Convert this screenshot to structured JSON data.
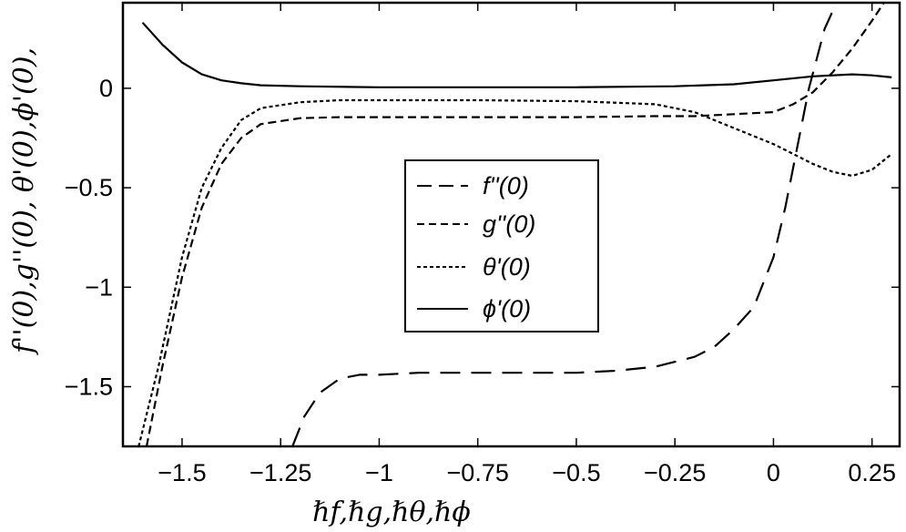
{
  "chart_data": {
    "type": "line",
    "title": "",
    "xlabel": "ℏf,ℏg,ℏθ,ℏϕ",
    "ylabel": "f''(0),g''(0), θ'(0),ϕ'(0),",
    "xlim": [
      -1.65,
      0.32
    ],
    "ylim": [
      -1.8,
      0.43
    ],
    "xticks": [
      -1.5,
      -1.25,
      -1,
      -0.75,
      -0.5,
      -0.25,
      0,
      0.25
    ],
    "xtick_labels": [
      "−1.5",
      "−1.25",
      "−1",
      "−0.75",
      "−0.5",
      "−0.25",
      "0",
      "0.25"
    ],
    "yticks": [
      0,
      -0.5,
      -1,
      -1.5
    ],
    "ytick_labels": [
      "0",
      "−0.5",
      "−1",
      "−1.5"
    ],
    "grid": false,
    "legend": "center-right",
    "series": [
      {
        "name": "f''(0)",
        "dash": "long",
        "x": [
          -1.22,
          -1.19,
          -1.15,
          -1.1,
          -1.05,
          -1.0,
          -0.9,
          -0.75,
          -0.6,
          -0.5,
          -0.4,
          -0.3,
          -0.2,
          -0.15,
          -0.1,
          -0.05,
          0.0,
          0.03,
          0.06,
          0.09,
          0.11,
          0.13,
          0.16
        ],
        "y": [
          -1.8,
          -1.65,
          -1.53,
          -1.46,
          -1.44,
          -1.44,
          -1.43,
          -1.43,
          -1.43,
          -1.43,
          -1.42,
          -1.4,
          -1.35,
          -1.3,
          -1.21,
          -1.1,
          -0.85,
          -0.6,
          -0.3,
          0.0,
          0.15,
          0.3,
          0.43
        ]
      },
      {
        "name": "g''(0)",
        "dash": "medium",
        "x": [
          -1.59,
          -1.55,
          -1.5,
          -1.45,
          -1.4,
          -1.35,
          -1.3,
          -1.2,
          -1.1,
          -1.0,
          -0.75,
          -0.5,
          -0.3,
          -0.2,
          -0.1,
          0.0,
          0.05,
          0.1,
          0.15,
          0.2,
          0.25,
          0.28
        ],
        "y": [
          -1.8,
          -1.4,
          -0.95,
          -0.6,
          -0.38,
          -0.25,
          -0.18,
          -0.15,
          -0.145,
          -0.145,
          -0.145,
          -0.145,
          -0.14,
          -0.14,
          -0.13,
          -0.12,
          -0.08,
          -0.02,
          0.08,
          0.2,
          0.34,
          0.43
        ]
      },
      {
        "name": "θ'(0)",
        "dash": "short",
        "x": [
          -1.61,
          -1.56,
          -1.5,
          -1.45,
          -1.4,
          -1.35,
          -1.3,
          -1.2,
          -1.1,
          -1.0,
          -0.75,
          -0.5,
          -0.3,
          -0.2,
          -0.1,
          0.0,
          0.05,
          0.1,
          0.15,
          0.2,
          0.25,
          0.3
        ],
        "y": [
          -1.8,
          -1.4,
          -0.85,
          -0.5,
          -0.3,
          -0.16,
          -0.1,
          -0.07,
          -0.06,
          -0.06,
          -0.06,
          -0.065,
          -0.08,
          -0.12,
          -0.2,
          -0.28,
          -0.33,
          -0.38,
          -0.42,
          -0.44,
          -0.41,
          -0.33
        ]
      },
      {
        "name": "ϕ'(0)",
        "dash": "solid",
        "x": [
          -1.6,
          -1.55,
          -1.5,
          -1.45,
          -1.4,
          -1.35,
          -1.3,
          -1.2,
          -1.0,
          -0.75,
          -0.5,
          -0.25,
          -0.1,
          0.0,
          0.1,
          0.2,
          0.25,
          0.3
        ],
        "y": [
          0.33,
          0.22,
          0.13,
          0.07,
          0.04,
          0.025,
          0.015,
          0.01,
          0.005,
          0.005,
          0.005,
          0.01,
          0.02,
          0.04,
          0.06,
          0.07,
          0.065,
          0.055
        ]
      }
    ]
  }
}
